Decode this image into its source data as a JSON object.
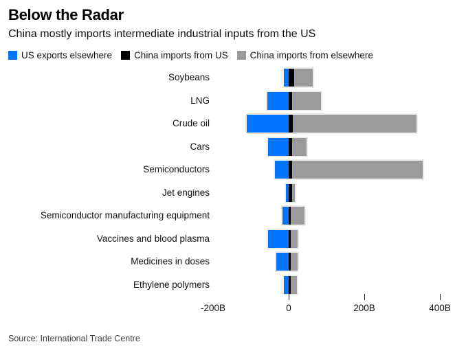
{
  "header": {
    "title": "Below the Radar",
    "subtitle": "China mostly imports intermediate industrial inputs from the US"
  },
  "legend": {
    "position": "top-left",
    "items": [
      {
        "label": "US exports elsewhere",
        "color": "#0374fc"
      },
      {
        "label": "China imports from US",
        "color": "#000000"
      },
      {
        "label": "China imports from elsewhere",
        "color": "#9b9b9b"
      }
    ]
  },
  "chart_data": {
    "type": "bar",
    "orientation": "horizontal",
    "title": "Below the Radar",
    "subtitle": "China mostly imports intermediate industrial inputs from the US",
    "unit": "USD billions",
    "grid": false,
    "legend_position": "top-left",
    "categories": [
      "Soybeans",
      "LNG",
      "Crude oil",
      "Cars",
      "Semiconductors",
      "Jet engines",
      "Semiconductor manufacturing equipment",
      "Vaccines and blood plasma",
      "Medicines in doses",
      "Ethylene polymers"
    ],
    "series": [
      {
        "name": "US exports elsewhere",
        "color": "#0374fc",
        "direction": "negative",
        "values": [
          13,
          56,
          111,
          55,
          36,
          8,
          16,
          54,
          32,
          12
        ]
      },
      {
        "name": "China imports from US",
        "color": "#000000",
        "direction": "positive",
        "values": [
          15,
          10,
          11,
          9,
          10,
          9,
          6,
          5,
          6,
          5
        ]
      },
      {
        "name": "China imports from elsewhere",
        "color": "#9b9b9b",
        "direction": "positive",
        "values": [
          48,
          75,
          327,
          38,
          345,
          7,
          35,
          18,
          18,
          17
        ]
      }
    ],
    "x_axis": {
      "range": [
        -200,
        420
      ],
      "tick_labels": [
        "-200B",
        "0",
        "200B",
        "400B"
      ],
      "tick_label_values": [
        -200,
        0,
        200,
        400
      ],
      "tick_mark_values": [
        0,
        200,
        400
      ]
    }
  },
  "footer": {
    "source": "Source: International Trade Centre"
  }
}
